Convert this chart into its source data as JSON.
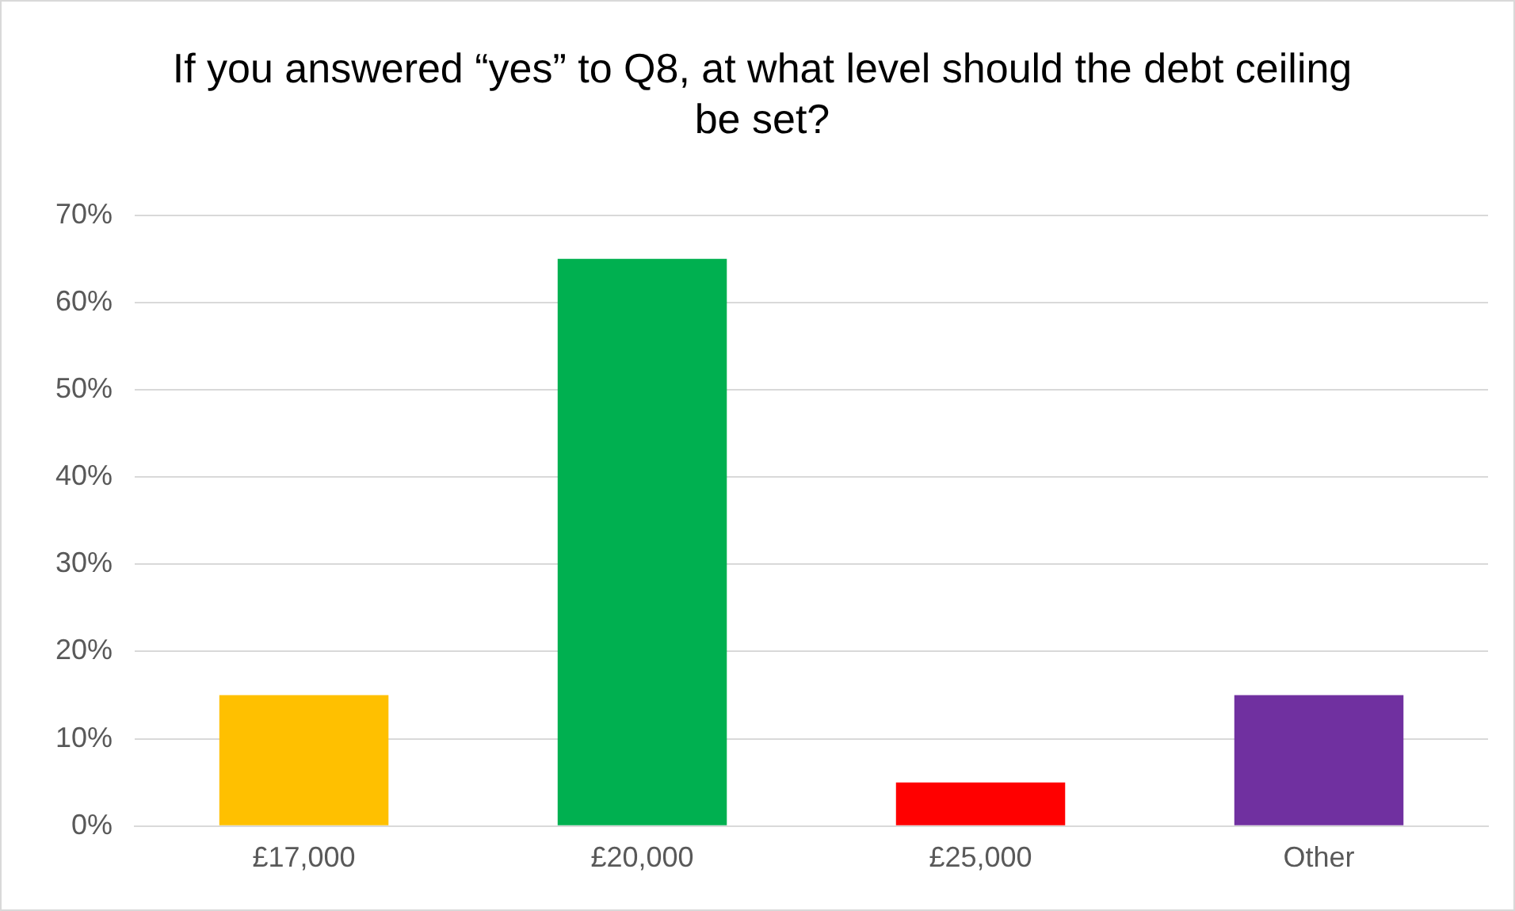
{
  "chart_data": {
    "type": "bar",
    "title": "If you answered “yes” to Q8, at what level should the debt ceiling be set?",
    "categories": [
      "£17,000",
      "£20,000",
      "£25,000",
      "Other"
    ],
    "values": [
      15,
      65,
      5,
      15
    ],
    "colors": [
      "#ffc000",
      "#00b050",
      "#ff0000",
      "#7030a0"
    ],
    "ylim": [
      0,
      70
    ],
    "yticks": [
      {
        "value": 0,
        "label": "0%"
      },
      {
        "value": 10,
        "label": "10%"
      },
      {
        "value": 20,
        "label": "20%"
      },
      {
        "value": 30,
        "label": "30%"
      },
      {
        "value": 40,
        "label": "40%"
      },
      {
        "value": 50,
        "label": "50%"
      },
      {
        "value": 60,
        "label": "60%"
      },
      {
        "value": 70,
        "label": "70%"
      }
    ],
    "grid": "y",
    "legend": false
  }
}
